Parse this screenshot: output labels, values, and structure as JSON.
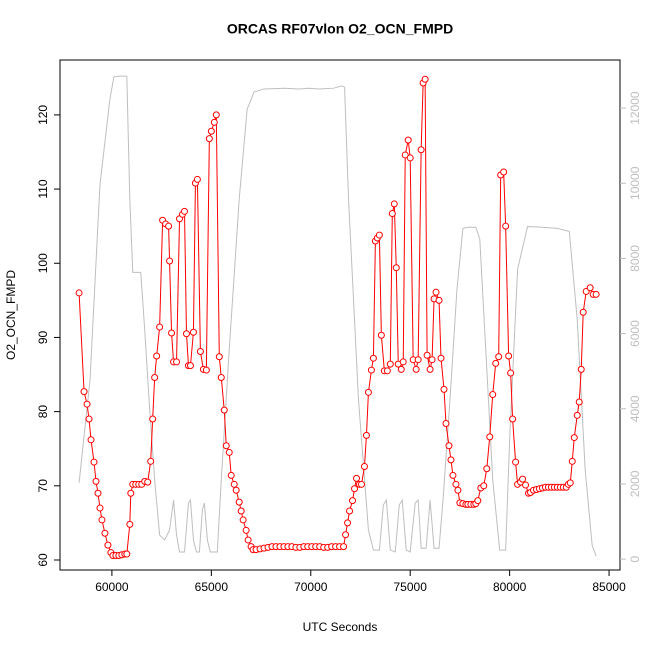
{
  "chart_data": {
    "type": "line",
    "title": "ORCAS RF07vlon O2_OCN_FMPD",
    "x_label": "UTC Seconds",
    "y_label": "O2_OCN_FMPD",
    "xlim": [
      57390,
      85550
    ],
    "xticks": [
      60000,
      65000,
      70000,
      75000,
      80000,
      85000
    ],
    "ylim": [
      58.65,
      127.4
    ],
    "yticks": [
      60,
      70,
      80,
      90,
      100,
      110,
      120
    ],
    "y2lim": [
      -290,
      13280
    ],
    "y2ticks": [
      0,
      2000,
      4000,
      6000,
      8000,
      10000,
      12000
    ],
    "series": [
      {
        "color": "#ff0000",
        "marker": "circle",
        "x": [
          58350,
          58600,
          58750,
          58850,
          58950,
          59100,
          59200,
          59300,
          59400,
          59500,
          59650,
          59800,
          59950,
          60050,
          60200,
          60350,
          60500,
          60650,
          60750,
          60900,
          60950,
          61050,
          61200,
          61350,
          61500,
          61650,
          61800,
          61950,
          62050,
          62150,
          62250,
          62400,
          62550,
          62700,
          62850,
          62900,
          63000,
          63100,
          63250,
          63400,
          63550,
          63650,
          63750,
          63850,
          63950,
          64100,
          64200,
          64300,
          64450,
          64600,
          64750,
          64900,
          65000,
          65150,
          65250,
          65400,
          65500,
          65650,
          65750,
          65900,
          66000,
          66150,
          66250,
          66400,
          66500,
          66600,
          66750,
          66850,
          67000,
          67100,
          67250,
          67450,
          67650,
          67850,
          68050,
          68250,
          68450,
          68650,
          68850,
          69050,
          69250,
          69450,
          69650,
          69850,
          70050,
          70250,
          70450,
          70650,
          70850,
          71050,
          71250,
          71450,
          71650,
          71750,
          71850,
          71950,
          72100,
          72200,
          72300,
          72450,
          72550,
          72700,
          72800,
          72900,
          73050,
          73150,
          73250,
          73350,
          73450,
          73550,
          73700,
          73850,
          74000,
          74100,
          74200,
          74300,
          74400,
          74550,
          74650,
          74750,
          74900,
          75000,
          75150,
          75300,
          75400,
          75550,
          75650,
          75750,
          75850,
          76000,
          76100,
          76200,
          76300,
          76450,
          76550,
          76700,
          76800,
          76950,
          77050,
          77150,
          77300,
          77400,
          77500,
          77650,
          77800,
          77900,
          78050,
          78200,
          78300,
          78400,
          78550,
          78700,
          78850,
          79000,
          79150,
          79300,
          79450,
          79550,
          79700,
          79800,
          79950,
          80050,
          80150,
          80300,
          80400,
          80550,
          80650,
          80800,
          80950,
          81050,
          81200,
          81350,
          81500,
          81650,
          81800,
          81950,
          82100,
          82250,
          82400,
          82550,
          82700,
          82850,
          82950,
          83050,
          83150,
          83250,
          83400,
          83500,
          83600,
          83700,
          83850,
          84050,
          84200,
          84350
        ],
        "values": [
          96,
          82.7,
          81,
          79,
          76.2,
          73.2,
          70.6,
          69,
          67,
          65.4,
          63.6,
          62,
          61,
          60.6,
          60.6,
          60.6,
          60.7,
          60.8,
          60.8,
          64.8,
          69,
          70.2,
          70.2,
          70.2,
          70.2,
          70.6,
          70.5,
          73.3,
          79,
          84.6,
          87.5,
          91.4,
          105.8,
          105.3,
          105,
          100.3,
          90.6,
          86.7,
          86.7,
          106,
          106.6,
          107,
          90.5,
          86.2,
          86.2,
          90.7,
          110.8,
          111.3,
          88.1,
          85.7,
          85.6,
          116.8,
          117.8,
          119,
          120,
          87.4,
          84.6,
          80.2,
          75.4,
          74.5,
          71.4,
          70.2,
          69.4,
          67.8,
          66.6,
          65.4,
          64,
          62.7,
          61.8,
          61.4,
          61.4,
          61.5,
          61.6,
          61.7,
          61.8,
          61.8,
          61.8,
          61.8,
          61.8,
          61.8,
          61.7,
          61.7,
          61.8,
          61.8,
          61.8,
          61.8,
          61.8,
          61.7,
          61.7,
          61.8,
          61.8,
          61.8,
          61.8,
          63.4,
          65,
          66.6,
          68,
          69.6,
          71,
          70.2,
          70.2,
          72.6,
          76.8,
          82.6,
          85.6,
          87.2,
          103,
          103.4,
          103.8,
          90.3,
          85.5,
          85.5,
          86.4,
          106.7,
          108,
          99.4,
          86.4,
          85.7,
          86.7,
          114.6,
          116.6,
          114.2,
          87,
          85.7,
          87,
          115.3,
          124.3,
          124.8,
          87.6,
          85.7,
          87,
          95.2,
          96.1,
          95,
          87.2,
          83,
          78.4,
          75.4,
          73.5,
          71.4,
          70.2,
          69.4,
          67.7,
          67.6,
          67.5,
          67.5,
          67.5,
          67.5,
          67.6,
          68,
          69.7,
          70,
          72.3,
          76.6,
          82.3,
          86.5,
          87.4,
          111.9,
          112.3,
          105,
          87.5,
          85.2,
          79,
          73.2,
          70.2,
          70.5,
          70.9,
          70.1,
          69,
          69.1,
          69.4,
          69.5,
          69.6,
          69.7,
          69.8,
          69.8,
          69.8,
          69.8,
          69.8,
          69.8,
          69.8,
          69.8,
          70.2,
          70.4,
          73.3,
          76.5,
          79.5,
          81.3,
          85.7,
          93.4,
          96.2,
          96.7,
          95.8,
          95.8
        ]
      },
      {
        "color": "#bebebe",
        "axis": "y2",
        "x": [
          58350,
          58900,
          59400,
          59900,
          60100,
          60400,
          60750,
          60900,
          61050,
          61150,
          61450,
          61650,
          61900,
          62150,
          62400,
          62650,
          62900,
          63100,
          63250,
          63400,
          63650,
          63850,
          63950,
          64100,
          64250,
          64400,
          64550,
          64650,
          64800,
          64950,
          65300,
          65500,
          65900,
          66400,
          66800,
          67150,
          67650,
          68650,
          69400,
          69900,
          70400,
          71150,
          71550,
          71700,
          71900,
          72400,
          72900,
          73150,
          73450,
          73650,
          73800,
          74000,
          74250,
          74450,
          74600,
          74800,
          75000,
          75250,
          75400,
          75550,
          75800,
          76000,
          76200,
          76450,
          76650,
          77000,
          77350,
          77650,
          77900,
          78300,
          78500,
          78800,
          79150,
          79500,
          79800,
          80000,
          80400,
          80900,
          81650,
          82400,
          83000,
          83400,
          83800,
          84150,
          84350
        ],
        "values": [
          2030,
          4770,
          9970,
          12240,
          12830,
          12850,
          12850,
          9570,
          7630,
          7630,
          7630,
          6100,
          3970,
          2110,
          640,
          510,
          770,
          1570,
          640,
          190,
          190,
          1490,
          1570,
          510,
          190,
          190,
          1310,
          1490,
          510,
          190,
          190,
          2110,
          5570,
          9570,
          11970,
          12430,
          12510,
          12530,
          12510,
          12530,
          12510,
          12530,
          12590,
          12560,
          9570,
          4240,
          770,
          240,
          240,
          1440,
          1570,
          240,
          190,
          1440,
          1570,
          240,
          190,
          1490,
          1570,
          290,
          290,
          1570,
          290,
          290,
          1570,
          4240,
          7170,
          8800,
          8830,
          8830,
          8510,
          5570,
          2110,
          240,
          240,
          3170,
          7710,
          8850,
          8830,
          8800,
          8720,
          6370,
          2370,
          370,
          80
        ]
      }
    ]
  }
}
